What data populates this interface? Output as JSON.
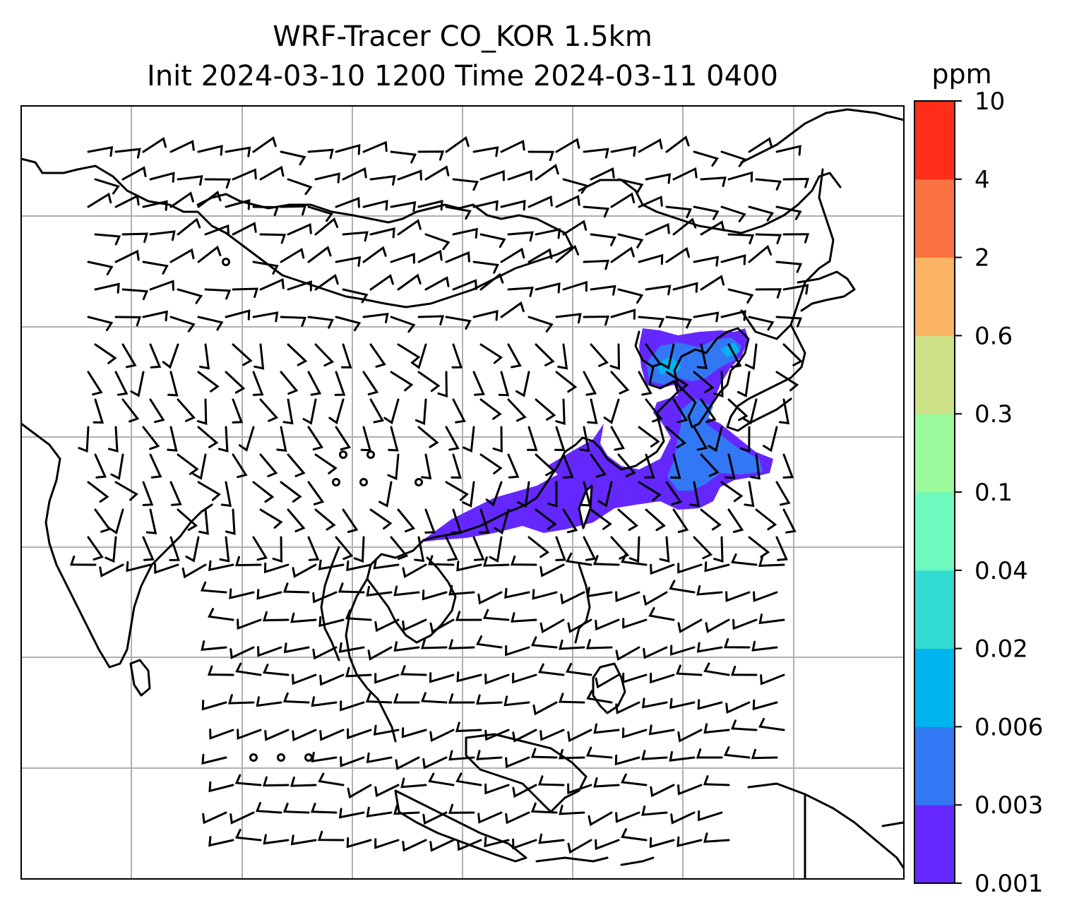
{
  "title": {
    "line1": "WRF-Tracer CO_KOR 1.5km",
    "line2": "Init 2024-03-10 1200 Time 2024-03-11 0400"
  },
  "colorbar": {
    "unit": "ppm",
    "levels": [
      "0.001",
      "0.003",
      "0.006",
      "0.02",
      "0.04",
      "0.1",
      "0.3",
      "0.6",
      "2",
      "4",
      "10"
    ],
    "colors": [
      "#6428ff",
      "#3278f5",
      "#00b4f0",
      "#32dcd2",
      "#6efabe",
      "#9bfa9b",
      "#cde187",
      "#fab464",
      "#fa7341",
      "#ff2d19"
    ]
  },
  "map": {
    "projection": "lat-lon grid",
    "gridlines": true,
    "features": [
      "coastlines",
      "wind-barbs",
      "tracer-concentration-shading"
    ]
  }
}
